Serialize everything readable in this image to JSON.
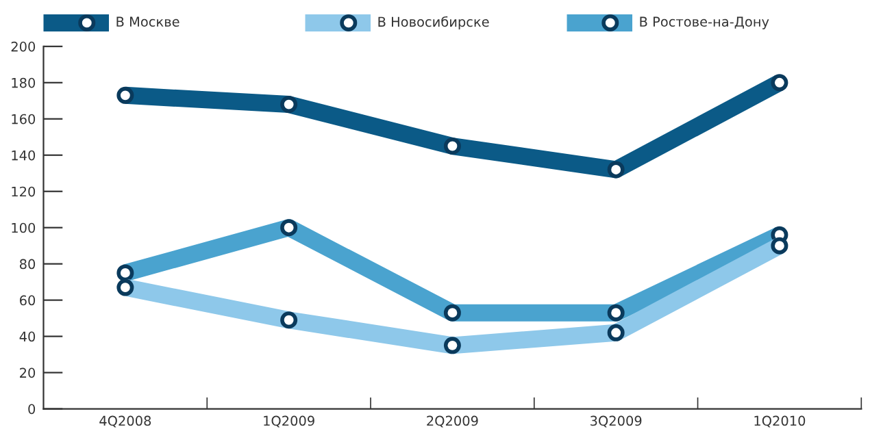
{
  "chart_data": {
    "type": "line",
    "categories": [
      "4Q2008",
      "1Q2009",
      "2Q2009",
      "3Q2009",
      "1Q2010"
    ],
    "series": [
      {
        "name": "В Москве",
        "color": "#0b5a87",
        "values": [
          173,
          168,
          145,
          132,
          180
        ]
      },
      {
        "name": "В Новосибирске",
        "color": "#8ec8ea",
        "values": [
          67,
          49,
          35,
          42,
          90
        ]
      },
      {
        "name": "В Ростове-на-Дону",
        "color": "#4aa3cf",
        "values": [
          75,
          100,
          53,
          53,
          96
        ]
      }
    ],
    "ylim": [
      0,
      200
    ],
    "yticks": [
      0,
      20,
      40,
      60,
      80,
      100,
      120,
      140,
      160,
      180,
      200
    ],
    "grid": false,
    "legend": "top",
    "marker": "circle",
    "line_style": "solid"
  }
}
